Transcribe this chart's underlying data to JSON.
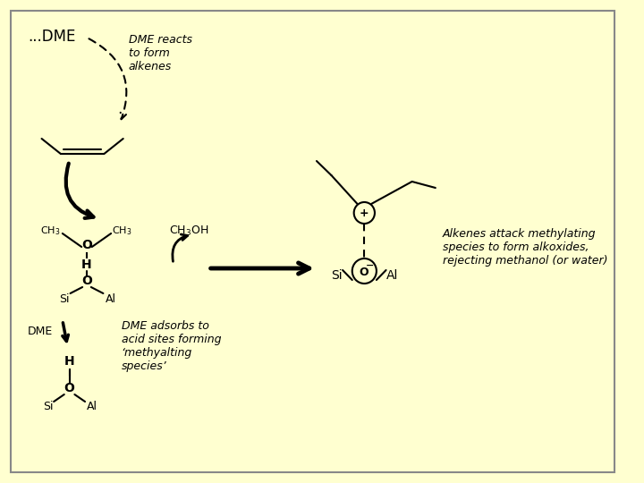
{
  "background_color": "#FFFFD0",
  "border_color": "#888888",
  "fig_width": 7.2,
  "fig_height": 5.4,
  "dpi": 100,
  "dme_text": "...DME",
  "dme_reacts_text": "DME reacts\nto form\nalkenes",
  "alkenes_attack_text": "Alkenes attack methylating\nspecies to form alkoxides,\nrejecting methanol (or water)",
  "dme_adsorbs_text": "DME adsorbs to\nacid sites forming\n‘methyalting\nspecies’",
  "ch3oh_text": "CH$_3$OH",
  "ch3_left_text": "CH$_3$",
  "ch3_right_text": "CH$_3$",
  "dme_bottom_text": "DME",
  "si_text": "Si",
  "al_text": "Al"
}
